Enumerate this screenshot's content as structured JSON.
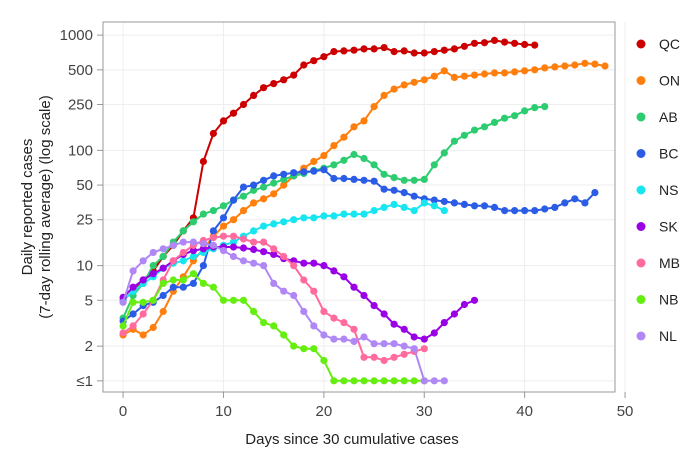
{
  "chart_data": {
    "type": "line",
    "xlabel": "Days since 30 cumulative cases",
    "ylabel_lines": [
      "Daily reported cases",
      "(7-day rolling average) (log scale)"
    ],
    "y_scale": "log",
    "xlim": [
      -2,
      49
    ],
    "ylim": [
      0.8,
      1300
    ],
    "x_ticks": [
      0,
      10,
      20,
      30,
      40,
      50
    ],
    "y_ticks": [
      {
        "value": 1,
        "label": "≤1"
      },
      {
        "value": 2,
        "label": "2"
      },
      {
        "value": 5,
        "label": "5"
      },
      {
        "value": 10,
        "label": "10"
      },
      {
        "value": 25,
        "label": "25"
      },
      {
        "value": 50,
        "label": "50"
      },
      {
        "value": 100,
        "label": "100"
      },
      {
        "value": 250,
        "label": "250"
      },
      {
        "value": 500,
        "label": "500"
      },
      {
        "value": 1000,
        "label": "1000"
      }
    ],
    "grid": true,
    "legend_position": "right",
    "series": [
      {
        "name": "QC",
        "color": "#cc0000",
        "x": [
          0,
          1,
          2,
          3,
          4,
          5,
          6,
          7,
          8,
          9,
          10,
          11,
          12,
          13,
          14,
          15,
          16,
          17,
          18,
          19,
          20,
          21,
          22,
          23,
          24,
          25,
          26,
          27,
          28,
          29,
          30,
          31,
          32,
          33,
          34,
          35,
          36,
          37,
          38,
          39,
          40,
          41
        ],
        "y": [
          5,
          6,
          7.5,
          9,
          12,
          15,
          20,
          26,
          80,
          140,
          180,
          210,
          250,
          300,
          350,
          380,
          410,
          450,
          550,
          600,
          650,
          720,
          730,
          740,
          760,
          760,
          780,
          720,
          730,
          700,
          700,
          720,
          740,
          760,
          800,
          850,
          860,
          900,
          870,
          850,
          830,
          820
        ]
      },
      {
        "name": "ON",
        "color": "#ff7f0e",
        "x": [
          0,
          1,
          2,
          3,
          4,
          5,
          6,
          7,
          8,
          9,
          10,
          11,
          12,
          13,
          14,
          15,
          16,
          17,
          18,
          19,
          20,
          21,
          22,
          23,
          24,
          25,
          26,
          27,
          28,
          29,
          30,
          31,
          32,
          33,
          34,
          35,
          36,
          37,
          38,
          39,
          40,
          41,
          42,
          43,
          44,
          45,
          46,
          47,
          48
        ],
        "y": [
          2.5,
          2.8,
          2.5,
          2.9,
          4,
          6,
          8,
          11,
          14,
          18,
          22,
          25,
          30,
          35,
          38,
          42,
          50,
          60,
          70,
          80,
          90,
          110,
          130,
          160,
          180,
          240,
          300,
          340,
          370,
          390,
          410,
          440,
          490,
          430,
          440,
          450,
          460,
          470,
          470,
          480,
          490,
          500,
          520,
          530,
          540,
          550,
          570,
          560,
          540
        ]
      },
      {
        "name": "AB",
        "color": "#2ecc71",
        "x": [
          0,
          1,
          2,
          3,
          4,
          5,
          6,
          7,
          8,
          9,
          10,
          11,
          12,
          13,
          14,
          15,
          16,
          17,
          18,
          19,
          20,
          21,
          22,
          23,
          24,
          25,
          26,
          27,
          28,
          29,
          30,
          31,
          32,
          33,
          34,
          35,
          36,
          37,
          38,
          39,
          40,
          41,
          42
        ],
        "y": [
          3.5,
          5.5,
          7,
          10,
          12,
          16,
          20,
          24,
          28,
          30,
          33,
          37,
          40,
          45,
          48,
          52,
          56,
          60,
          63,
          67,
          70,
          75,
          82,
          92,
          85,
          75,
          62,
          58,
          55,
          55,
          56,
          75,
          95,
          120,
          135,
          150,
          160,
          175,
          190,
          200,
          220,
          235,
          240
        ]
      },
      {
        "name": "BC",
        "color": "#2b5ce6",
        "x": [
          0,
          1,
          2,
          3,
          4,
          5,
          6,
          7,
          8,
          9,
          10,
          11,
          12,
          13,
          14,
          15,
          16,
          17,
          18,
          19,
          20,
          21,
          22,
          23,
          24,
          25,
          26,
          27,
          28,
          29,
          30,
          31,
          32,
          33,
          34,
          35,
          36,
          37,
          38,
          39,
          40,
          41,
          42,
          43,
          44,
          45,
          46,
          47
        ],
        "y": [
          3.3,
          3.8,
          4.5,
          4.8,
          5.5,
          6.5,
          6.5,
          7,
          10,
          20,
          26,
          37,
          48,
          50,
          55,
          60,
          62,
          64,
          65,
          66,
          68,
          57,
          57,
          56,
          55,
          54,
          46,
          45,
          43,
          40,
          38,
          37,
          36,
          35,
          34,
          33,
          33,
          32,
          30,
          30,
          30,
          30,
          31,
          32,
          35,
          38,
          35,
          43
        ]
      },
      {
        "name": "NS",
        "color": "#17e6f0",
        "x": [
          0,
          1,
          2,
          3,
          4,
          5,
          6,
          7,
          8,
          9,
          10,
          11,
          12,
          13,
          14,
          15,
          16,
          17,
          18,
          19,
          20,
          21,
          22,
          23,
          24,
          25,
          26,
          27,
          28,
          29,
          30,
          31,
          32
        ],
        "y": [
          5,
          6,
          7,
          8,
          9.5,
          10.5,
          11,
          12,
          13,
          14,
          15,
          16,
          18,
          20,
          22,
          23,
          24,
          25,
          26,
          26,
          27,
          27,
          28,
          28,
          28,
          30,
          32,
          34,
          32,
          30,
          35,
          33,
          30
        ]
      },
      {
        "name": "SK",
        "color": "#9900e6",
        "x": [
          0,
          1,
          2,
          3,
          4,
          5,
          6,
          7,
          8,
          9,
          10,
          11,
          12,
          13,
          14,
          15,
          16,
          17,
          18,
          19,
          20,
          21,
          22,
          23,
          24,
          25,
          26,
          27,
          28,
          29,
          30,
          31,
          32,
          33,
          34,
          35
        ],
        "y": [
          5.3,
          6.5,
          7.5,
          8.5,
          9.5,
          11,
          12.5,
          13.5,
          14,
          14.5,
          14.5,
          14.5,
          14.2,
          13.8,
          13.2,
          12.5,
          11.5,
          11,
          10.5,
          10.5,
          10,
          9,
          8,
          6.5,
          5.5,
          4.5,
          3.8,
          3.1,
          2.8,
          2.4,
          2.3,
          2.6,
          3.2,
          3.8,
          4.6,
          5
        ]
      },
      {
        "name": "MB",
        "color": "#ff6b9f",
        "x": [
          0,
          1,
          2,
          3,
          4,
          5,
          6,
          7,
          8,
          9,
          10,
          11,
          12,
          13,
          14,
          15,
          16,
          17,
          18,
          19,
          20,
          21,
          22,
          23,
          24,
          25,
          26,
          27,
          28,
          29,
          30
        ],
        "y": [
          2.6,
          3,
          3.8,
          5,
          7.5,
          11,
          13,
          15,
          16.5,
          17.5,
          18,
          18,
          17,
          16,
          16,
          14,
          12,
          10,
          7.5,
          6,
          4,
          3.5,
          3.2,
          2.8,
          1.6,
          1.6,
          1.5,
          1.6,
          1.7,
          1.8,
          1.9
        ]
      },
      {
        "name": "NB",
        "color": "#66ee11",
        "x": [
          0,
          1,
          2,
          3,
          4,
          5,
          6,
          7,
          8,
          9,
          10,
          11,
          12,
          13,
          14,
          15,
          16,
          17,
          18,
          19,
          20,
          21,
          22,
          23,
          24,
          25,
          26,
          27,
          28,
          29,
          30
        ],
        "y": [
          3,
          4.8,
          4.8,
          5,
          7,
          7.5,
          7.5,
          8.5,
          7,
          6.5,
          5,
          5,
          5,
          4,
          3.2,
          3,
          2.5,
          2,
          1.9,
          1.9,
          1.5,
          1,
          1,
          1,
          1,
          1,
          1,
          1,
          1,
          1,
          1
        ]
      },
      {
        "name": "NL",
        "color": "#b088f5",
        "x": [
          0,
          1,
          2,
          3,
          4,
          5,
          6,
          7,
          8,
          9,
          10,
          11,
          12,
          13,
          14,
          15,
          16,
          17,
          18,
          19,
          20,
          21,
          22,
          23,
          24,
          25,
          26,
          27,
          28,
          29,
          30,
          31,
          32
        ],
        "y": [
          4.8,
          9,
          11,
          13,
          14,
          15,
          16,
          16,
          15.5,
          15,
          13.5,
          12,
          11,
          10.5,
          10,
          7,
          6,
          5.5,
          4,
          3,
          2.5,
          2.3,
          2.3,
          2.2,
          2.4,
          2.1,
          2.1,
          2.1,
          2,
          1.9,
          1,
          1,
          1
        ]
      }
    ]
  }
}
